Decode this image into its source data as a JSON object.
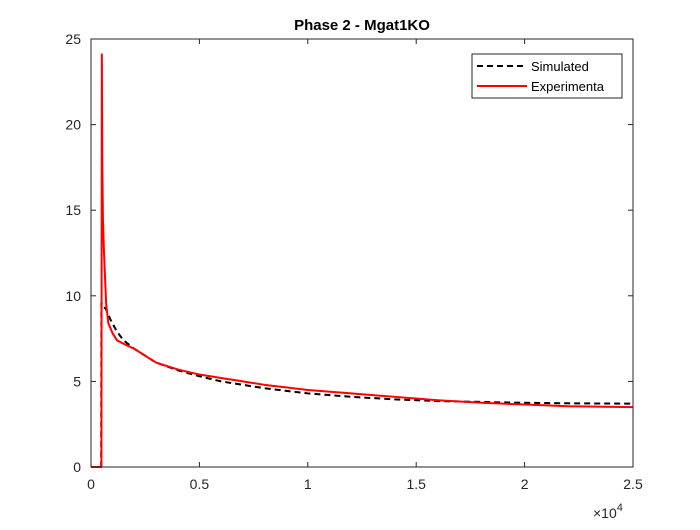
{
  "chart_data": {
    "type": "line",
    "title": "Phase 2 - Mgat1KO",
    "xlabel": "",
    "ylabel": "",
    "xlim": [
      0,
      25000
    ],
    "ylim": [
      0,
      25
    ],
    "x_exponent_label": "×10",
    "x_exponent_power": "4",
    "x_ticks": [
      0,
      5000,
      10000,
      15000,
      20000,
      25000
    ],
    "x_tick_labels": [
      "0",
      "0.5",
      "1",
      "1.5",
      "2",
      "2.5"
    ],
    "y_ticks": [
      0,
      5,
      10,
      15,
      20,
      25
    ],
    "y_tick_labels": [
      "0",
      "5",
      "10",
      "15",
      "20",
      "25"
    ],
    "grid": false,
    "legend_position": "top-right",
    "series": [
      {
        "name": "Simulated",
        "color": "#000000",
        "style": "dashed",
        "x": [
          0,
          470,
          480,
          500,
          700,
          900,
          1200,
          1500,
          2000,
          3000,
          4000,
          5000,
          6000,
          7000,
          8000,
          9000,
          10000,
          12000,
          14000,
          16000,
          18000,
          20000,
          22000,
          25000
        ],
        "y": [
          0,
          0,
          9.6,
          9.5,
          9.2,
          8.6,
          7.9,
          7.4,
          6.9,
          6.1,
          5.65,
          5.3,
          5.0,
          4.8,
          4.6,
          4.45,
          4.3,
          4.1,
          3.95,
          3.85,
          3.8,
          3.75,
          3.72,
          3.7
        ]
      },
      {
        "name": "Experimenta",
        "color": "#ff0000",
        "style": "solid",
        "x": [
          0,
          460,
          480,
          500,
          520,
          550,
          600,
          650,
          700,
          800,
          1000,
          1200,
          1500,
          2000,
          3000,
          4000,
          5000,
          6000,
          7000,
          8000,
          9000,
          10000,
          12000,
          14000,
          16000,
          18000,
          20000,
          22000,
          25000
        ],
        "y": [
          0,
          0,
          0,
          24.1,
          18.0,
          14.5,
          12.5,
          11.0,
          9.5,
          8.4,
          7.8,
          7.4,
          7.2,
          6.9,
          6.1,
          5.7,
          5.4,
          5.2,
          5.0,
          4.8,
          4.65,
          4.5,
          4.3,
          4.1,
          3.9,
          3.75,
          3.65,
          3.55,
          3.5
        ]
      }
    ]
  }
}
